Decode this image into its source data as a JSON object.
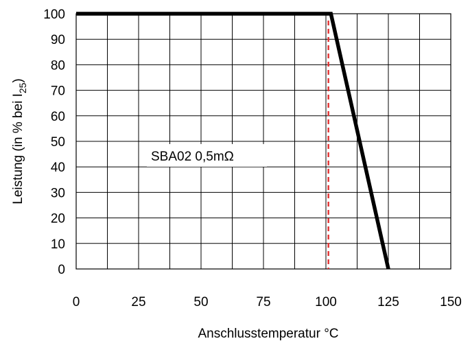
{
  "chart_data": {
    "type": "line",
    "title": "",
    "xlabel": "Anschlusstemperatur °C",
    "ylabel_main": "Leistung (in % bei I",
    "ylabel_sub": "25",
    "ylabel_close": ")",
    "xlim": [
      0,
      150
    ],
    "ylim": [
      0,
      100
    ],
    "xticks": [
      0,
      25,
      50,
      75,
      100,
      125,
      150
    ],
    "yticks": [
      0,
      10,
      20,
      30,
      40,
      50,
      60,
      70,
      80,
      90,
      100
    ],
    "x_gridlines": [
      0,
      12.5,
      25,
      37.5,
      50,
      62.5,
      75,
      87.5,
      100,
      112.5,
      125,
      137.5,
      150
    ],
    "grid": true,
    "series": [
      {
        "label": "SBA02 0,5mΩ",
        "color": "#000000",
        "points": [
          {
            "x": 0,
            "y": 100
          },
          {
            "x": 102,
            "y": 100
          },
          {
            "x": 125,
            "y": 0
          }
        ]
      }
    ],
    "reference_line": {
      "x": 101,
      "style": "dashed",
      "color": "#e03030"
    }
  }
}
